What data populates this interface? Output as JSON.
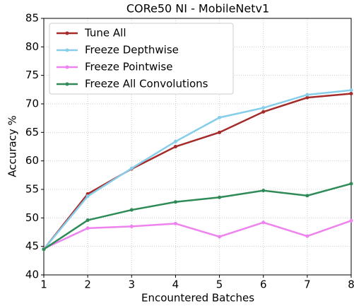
{
  "chart_data": {
    "type": "line",
    "title": "CORe50 NI - MobileNetv1",
    "x_label": "Encountered Batches",
    "y_label": "Accuracy %",
    "x": [
      1,
      2,
      3,
      4,
      5,
      6,
      7,
      8
    ],
    "series": [
      {
        "name": "Tune All",
        "color": "#a52a2a",
        "values": [
          44.5,
          54.2,
          58.6,
          62.5,
          65.0,
          68.6,
          71.1,
          71.8
        ]
      },
      {
        "name": "Freeze Depthwise",
        "color": "#87ceeb",
        "values": [
          44.5,
          53.8,
          58.7,
          63.4,
          67.6,
          69.3,
          71.6,
          72.4
        ]
      },
      {
        "name": "Freeze Pointwise",
        "color": "#ee82ee",
        "values": [
          44.6,
          48.2,
          48.5,
          49.0,
          46.7,
          49.2,
          46.8,
          49.5
        ]
      },
      {
        "name": "Freeze All Convolutions",
        "color": "#2e8b57",
        "values": [
          44.5,
          49.6,
          51.4,
          52.8,
          53.6,
          54.8,
          53.9,
          56.0
        ]
      }
    ],
    "xlim": [
      1,
      8
    ],
    "xticks": [
      1,
      2,
      3,
      4,
      5,
      6,
      7,
      8
    ],
    "ylim": [
      40,
      85
    ],
    "yticks": [
      40,
      45,
      50,
      55,
      60,
      65,
      70,
      75,
      80,
      85
    ],
    "grid": true,
    "legend": "upper left"
  }
}
